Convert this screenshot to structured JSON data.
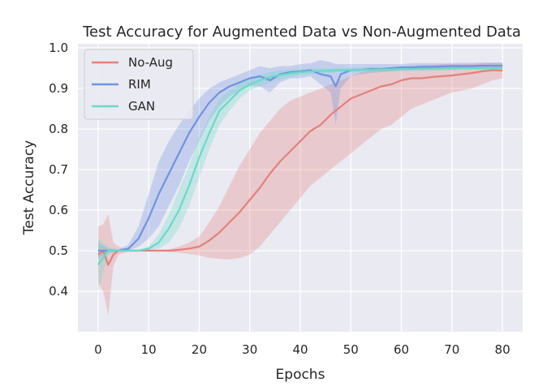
{
  "chart_data": {
    "type": "line",
    "title": "Test Accuracy for Augmented Data vs Non-Augmented Data",
    "xlabel": "Epochs",
    "ylabel": "Test Accuracy",
    "xlim": [
      -4,
      84
    ],
    "ylim": [
      0.3,
      1.01
    ],
    "xticks": [
      0,
      10,
      20,
      30,
      40,
      50,
      60,
      70,
      80
    ],
    "yticks": [
      0.4,
      0.5,
      0.6,
      0.7,
      0.8,
      0.9,
      1.0
    ],
    "grid": true,
    "legend_position": "top-left",
    "series": [
      {
        "name": "No-Aug",
        "color": "#e5807a",
        "x": [
          0,
          1,
          2,
          3,
          4,
          6,
          8,
          10,
          12,
          14,
          16,
          18,
          20,
          22,
          24,
          26,
          28,
          30,
          32,
          34,
          36,
          38,
          40,
          42,
          44,
          46,
          48,
          50,
          52,
          54,
          56,
          58,
          60,
          62,
          64,
          66,
          68,
          70,
          72,
          74,
          76,
          78,
          80
        ],
        "y": [
          0.49,
          0.5,
          0.465,
          0.49,
          0.5,
          0.5,
          0.5,
          0.5,
          0.5,
          0.5,
          0.502,
          0.505,
          0.51,
          0.525,
          0.545,
          0.57,
          0.595,
          0.625,
          0.655,
          0.69,
          0.72,
          0.745,
          0.77,
          0.795,
          0.81,
          0.835,
          0.855,
          0.875,
          0.885,
          0.895,
          0.905,
          0.91,
          0.92,
          0.925,
          0.925,
          0.928,
          0.93,
          0.932,
          0.935,
          0.938,
          0.942,
          0.945,
          0.944
        ],
        "lower": [
          0.42,
          0.4,
          0.34,
          0.46,
          0.49,
          0.498,
          0.498,
          0.498,
          0.498,
          0.497,
          0.495,
          0.492,
          0.488,
          0.482,
          0.48,
          0.478,
          0.482,
          0.49,
          0.51,
          0.54,
          0.57,
          0.6,
          0.63,
          0.66,
          0.68,
          0.7,
          0.72,
          0.74,
          0.76,
          0.78,
          0.8,
          0.81,
          0.83,
          0.85,
          0.86,
          0.87,
          0.88,
          0.89,
          0.895,
          0.9,
          0.91,
          0.92,
          0.925
        ],
        "upper": [
          0.56,
          0.565,
          0.59,
          0.52,
          0.51,
          0.502,
          0.502,
          0.502,
          0.502,
          0.503,
          0.51,
          0.52,
          0.535,
          0.57,
          0.61,
          0.66,
          0.71,
          0.75,
          0.79,
          0.82,
          0.85,
          0.87,
          0.88,
          0.89,
          0.9,
          0.91,
          0.92,
          0.93,
          0.94,
          0.945,
          0.95,
          0.95,
          0.955,
          0.955,
          0.958,
          0.958,
          0.96,
          0.96,
          0.96,
          0.96,
          0.962,
          0.963,
          0.963
        ]
      },
      {
        "name": "RIM",
        "color": "#6f93e0",
        "x": [
          0,
          2,
          4,
          6,
          8,
          10,
          12,
          14,
          16,
          18,
          20,
          22,
          24,
          26,
          28,
          30,
          32,
          34,
          36,
          38,
          40,
          42,
          44,
          46,
          47,
          48,
          50,
          52,
          54,
          56,
          58,
          60,
          62,
          64,
          66,
          68,
          70,
          72,
          74,
          76,
          78,
          80
        ],
        "y": [
          0.5,
          0.5,
          0.5,
          0.505,
          0.53,
          0.58,
          0.64,
          0.69,
          0.74,
          0.79,
          0.83,
          0.865,
          0.89,
          0.905,
          0.915,
          0.925,
          0.93,
          0.92,
          0.935,
          0.94,
          0.942,
          0.945,
          0.935,
          0.93,
          0.905,
          0.935,
          0.945,
          0.946,
          0.948,
          0.948,
          0.95,
          0.952,
          0.952,
          0.953,
          0.953,
          0.954,
          0.955,
          0.955,
          0.955,
          0.956,
          0.956,
          0.956
        ],
        "lower": [
          0.48,
          0.495,
          0.498,
          0.5,
          0.51,
          0.53,
          0.56,
          0.61,
          0.66,
          0.72,
          0.77,
          0.82,
          0.855,
          0.88,
          0.895,
          0.905,
          0.905,
          0.89,
          0.915,
          0.925,
          0.925,
          0.93,
          0.91,
          0.89,
          0.81,
          0.9,
          0.93,
          0.935,
          0.938,
          0.94,
          0.942,
          0.944,
          0.945,
          0.946,
          0.946,
          0.947,
          0.948,
          0.948,
          0.948,
          0.948,
          0.948,
          0.948
        ],
        "upper": [
          0.52,
          0.505,
          0.502,
          0.515,
          0.56,
          0.64,
          0.72,
          0.77,
          0.81,
          0.845,
          0.875,
          0.9,
          0.915,
          0.925,
          0.935,
          0.945,
          0.955,
          0.95,
          0.955,
          0.955,
          0.96,
          0.962,
          0.97,
          0.965,
          0.96,
          0.96,
          0.96,
          0.96,
          0.96,
          0.96,
          0.96,
          0.96,
          0.962,
          0.962,
          0.962,
          0.962,
          0.963,
          0.963,
          0.963,
          0.964,
          0.964,
          0.964
        ]
      },
      {
        "name": "GAN",
        "color": "#6ad9c7",
        "x": [
          0,
          2,
          4,
          6,
          8,
          10,
          12,
          14,
          16,
          18,
          20,
          22,
          24,
          26,
          28,
          30,
          32,
          34,
          36,
          38,
          40,
          42,
          44,
          46,
          48,
          50,
          52,
          54,
          56,
          58,
          60,
          62,
          64,
          66,
          68,
          70,
          72,
          74,
          76,
          78,
          80
        ],
        "y": [
          0.465,
          0.5,
          0.5,
          0.5,
          0.5,
          0.505,
          0.52,
          0.555,
          0.6,
          0.66,
          0.73,
          0.79,
          0.845,
          0.87,
          0.895,
          0.91,
          0.92,
          0.928,
          0.933,
          0.937,
          0.94,
          0.942,
          0.943,
          0.944,
          0.945,
          0.945,
          0.946,
          0.946,
          0.947,
          0.947,
          0.948,
          0.948,
          0.948,
          0.949,
          0.949,
          0.949,
          0.95,
          0.95,
          0.95,
          0.95,
          0.95
        ],
        "lower": [
          0.4,
          0.49,
          0.497,
          0.498,
          0.498,
          0.5,
          0.505,
          0.52,
          0.555,
          0.61,
          0.68,
          0.75,
          0.81,
          0.845,
          0.875,
          0.895,
          0.905,
          0.915,
          0.922,
          0.928,
          0.932,
          0.935,
          0.937,
          0.938,
          0.94,
          0.94,
          0.941,
          0.941,
          0.942,
          0.942,
          0.943,
          0.943,
          0.943,
          0.944,
          0.944,
          0.944,
          0.945,
          0.945,
          0.945,
          0.945,
          0.945
        ],
        "upper": [
          0.53,
          0.51,
          0.503,
          0.502,
          0.502,
          0.51,
          0.54,
          0.59,
          0.65,
          0.71,
          0.78,
          0.83,
          0.875,
          0.895,
          0.915,
          0.925,
          0.935,
          0.94,
          0.945,
          0.947,
          0.948,
          0.949,
          0.95,
          0.95,
          0.951,
          0.951,
          0.951,
          0.952,
          0.952,
          0.952,
          0.953,
          0.953,
          0.953,
          0.954,
          0.954,
          0.954,
          0.955,
          0.955,
          0.955,
          0.955,
          0.955
        ]
      }
    ]
  }
}
